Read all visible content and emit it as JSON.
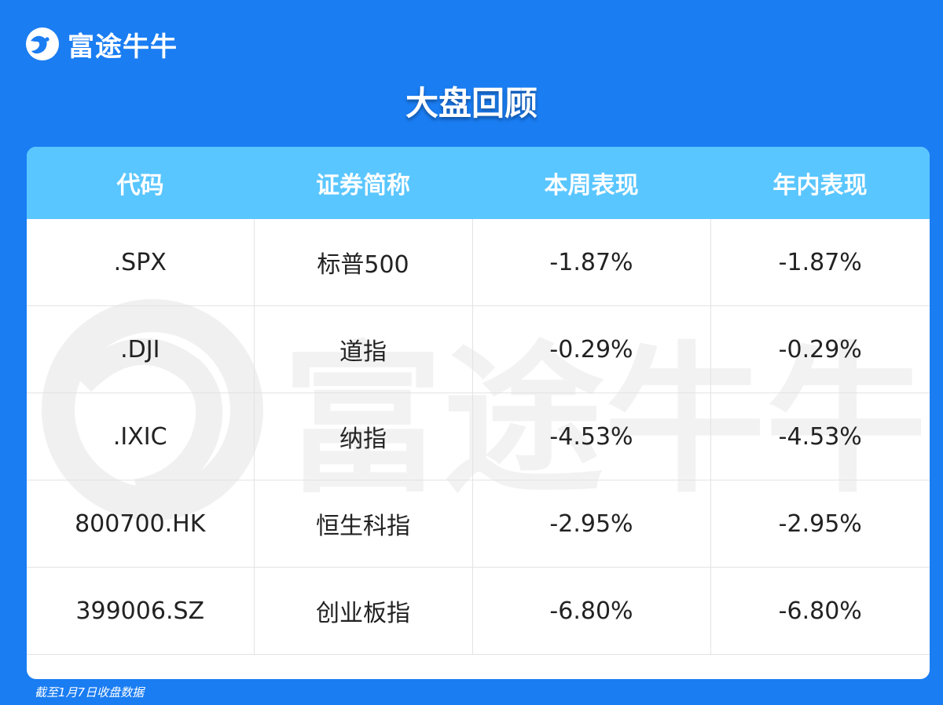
{
  "brand": {
    "name": "富途牛牛",
    "icon": "futu-bull-logo-icon"
  },
  "title": "大盘回顾",
  "table": {
    "headers": [
      "代码",
      "证券简称",
      "本周表现",
      "年内表现"
    ],
    "rows": [
      [
        ".SPX",
        "标普500",
        "-1.87%",
        "-1.87%"
      ],
      [
        ".DJI",
        "道指",
        "-0.29%",
        "-0.29%"
      ],
      [
        ".IXIC",
        "纳指",
        "-4.53%",
        "-4.53%"
      ],
      [
        "800700.HK",
        "恒生科指",
        "-2.95%",
        "-2.95%"
      ],
      [
        "399006.SZ",
        "创业板指",
        "-6.80%",
        "-6.80%"
      ]
    ]
  },
  "footnote": "截至1月7日收盘数据",
  "colors": {
    "background": "#1a7df2",
    "header": "#5ac6ff",
    "card": "#ffffff",
    "text": "#222222"
  }
}
